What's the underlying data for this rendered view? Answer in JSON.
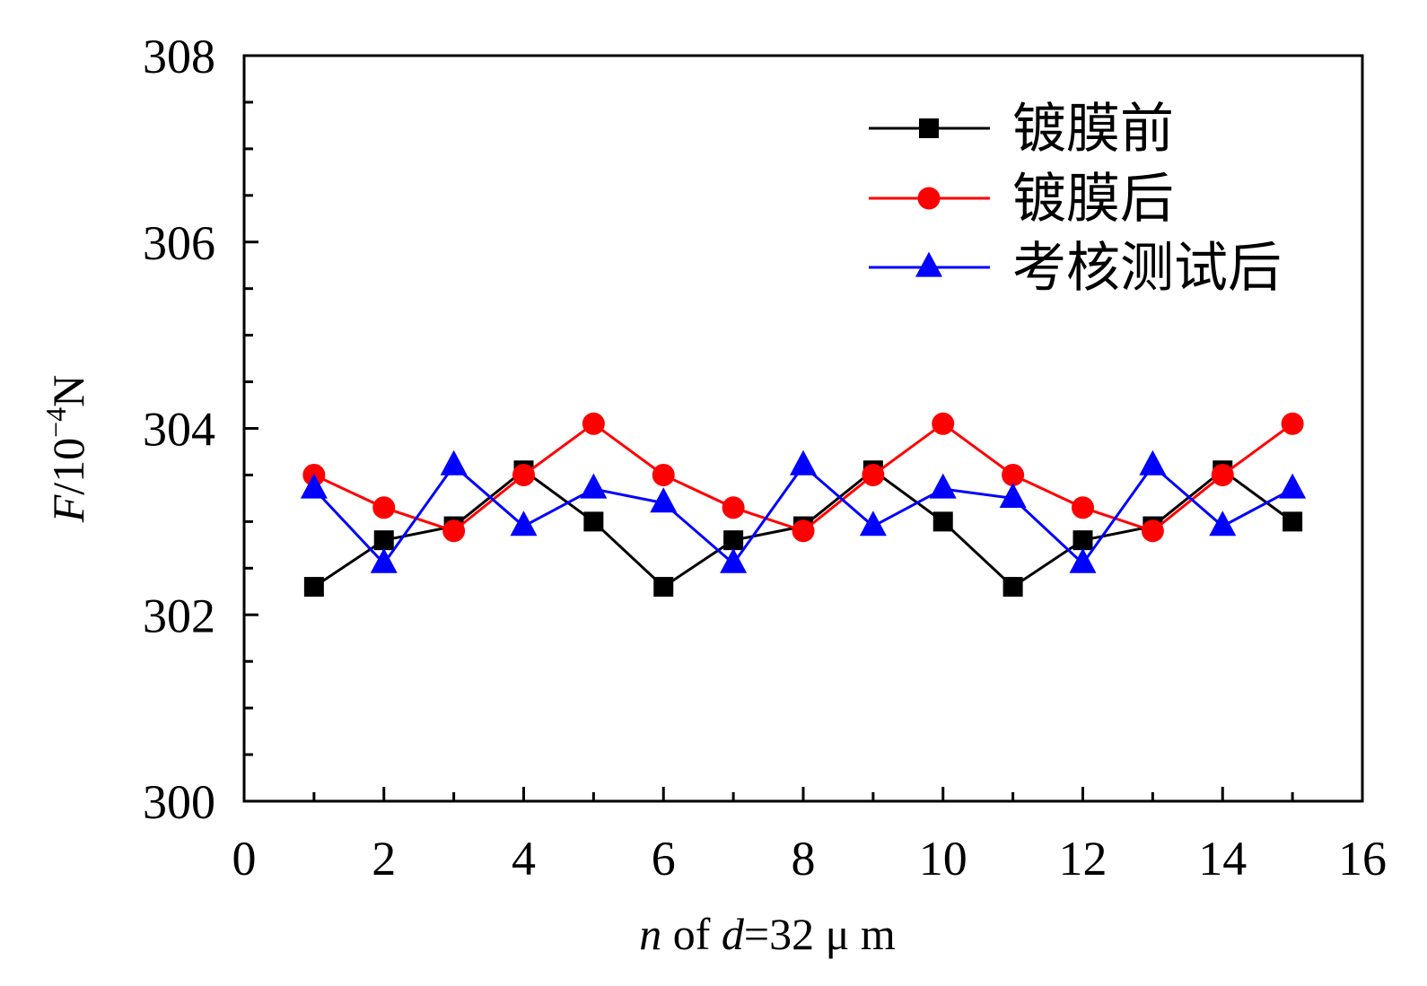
{
  "chart_data": {
    "type": "line",
    "x": [
      1,
      2,
      3,
      4,
      5,
      6,
      7,
      8,
      9,
      10,
      11,
      12,
      13,
      14,
      15
    ],
    "series": [
      {
        "name": "镀膜前",
        "color": "#000000",
        "marker": "square",
        "values": [
          302.3,
          302.8,
          302.95,
          303.55,
          303.0,
          302.3,
          302.8,
          302.95,
          303.55,
          303.0,
          302.3,
          302.8,
          302.95,
          303.55,
          303.0
        ]
      },
      {
        "name": "镀膜后",
        "color": "#ff0000",
        "marker": "circle",
        "values": [
          303.5,
          303.15,
          302.9,
          303.5,
          304.05,
          303.5,
          303.15,
          302.9,
          303.5,
          304.05,
          303.5,
          303.15,
          302.9,
          303.5,
          304.05
        ]
      },
      {
        "name": "考核测试后",
        "color": "#0000ff",
        "marker": "triangle",
        "values": [
          303.35,
          302.55,
          303.6,
          302.95,
          303.35,
          303.2,
          302.55,
          303.6,
          302.95,
          303.35,
          303.25,
          302.55,
          303.6,
          302.95,
          303.35
        ]
      }
    ],
    "xlim": [
      0,
      16
    ],
    "ylim": [
      300,
      308
    ],
    "x_ticks": [
      "0",
      "2",
      "4",
      "6",
      "8",
      "10",
      "12",
      "14",
      "16"
    ],
    "y_ticks": [
      "300",
      "302",
      "304",
      "306",
      "308"
    ],
    "xlabel_parts": [
      "n",
      " of ",
      "d",
      "=32  μ m"
    ],
    "ylabel_parts": [
      "F",
      "/10",
      "−4",
      "N"
    ],
    "legend_position": "top-right",
    "grid": false
  }
}
